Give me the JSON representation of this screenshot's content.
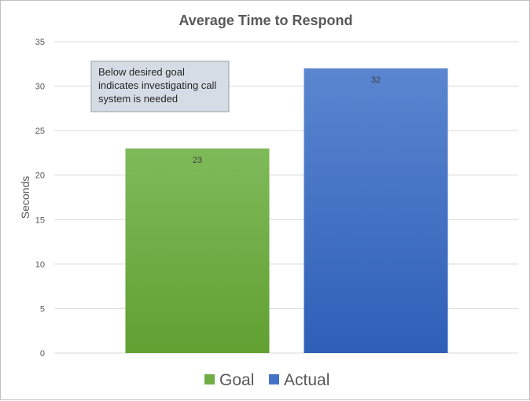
{
  "chart_data": {
    "type": "bar",
    "title": "Average Time to Respond",
    "xlabel": "",
    "ylabel": "Seconds",
    "ylim": [
      0,
      35
    ],
    "yticks": [
      0,
      5,
      10,
      15,
      20,
      25,
      30,
      35
    ],
    "grid": true,
    "legend_position": "bottom",
    "series": [
      {
        "name": "Goal",
        "values": [
          23
        ],
        "color": "#70ad47"
      },
      {
        "name": "Actual",
        "values": [
          32
        ],
        "color": "#4472c4"
      }
    ],
    "annotation": {
      "lines": [
        "Below desired goal",
        "indicates investigating call",
        "system is needed"
      ]
    }
  }
}
